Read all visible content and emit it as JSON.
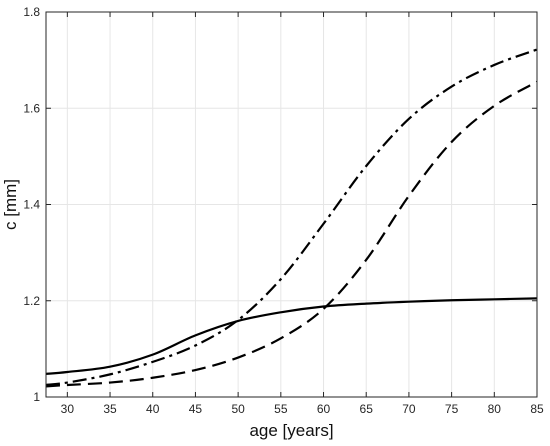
{
  "chart_data": {
    "type": "line",
    "title": "",
    "xlabel": "age [years]",
    "ylabel": "c [mm]",
    "xlim": [
      27.5,
      85
    ],
    "ylim": [
      1.0,
      1.8
    ],
    "xticks": [
      30,
      35,
      40,
      45,
      50,
      55,
      60,
      65,
      70,
      75,
      80,
      85
    ],
    "yticks": [
      1,
      1.2,
      1.4,
      1.6,
      1.8
    ],
    "xtick_labels": [
      "30",
      "35",
      "40",
      "45",
      "50",
      "55",
      "60",
      "65",
      "70",
      "75",
      "80",
      "85"
    ],
    "ytick_labels": [
      "1",
      "1.2",
      "1.4",
      "1.6",
      "1.8"
    ],
    "grid": true,
    "series": [
      {
        "style": "solid",
        "x": [
          27.5,
          30,
          35,
          40,
          45,
          50,
          55,
          60,
          65,
          70,
          75,
          80,
          85
        ],
        "y": [
          1.048,
          1.052,
          1.063,
          1.088,
          1.128,
          1.158,
          1.176,
          1.188,
          1.194,
          1.198,
          1.201,
          1.203,
          1.205
        ]
      },
      {
        "style": "dashdot",
        "x": [
          27.5,
          30,
          35,
          40,
          45,
          50,
          55,
          60,
          65,
          70,
          75,
          80,
          85
        ],
        "y": [
          1.025,
          1.03,
          1.047,
          1.073,
          1.107,
          1.16,
          1.245,
          1.36,
          1.48,
          1.578,
          1.645,
          1.69,
          1.722
        ]
      },
      {
        "style": "dashed",
        "x": [
          27.5,
          30,
          35,
          40,
          45,
          50,
          55,
          60,
          65,
          70,
          75,
          80,
          85
        ],
        "y": [
          1.022,
          1.025,
          1.03,
          1.04,
          1.056,
          1.082,
          1.122,
          1.183,
          1.285,
          1.418,
          1.53,
          1.605,
          1.655
        ]
      }
    ]
  }
}
